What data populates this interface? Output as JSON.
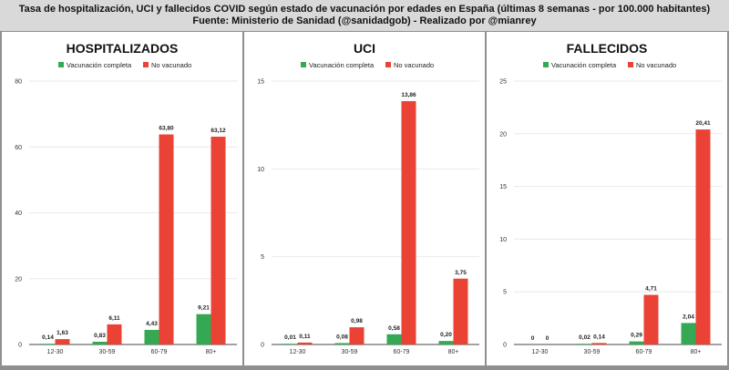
{
  "header": {
    "line1": "Tasa de hospitalización, UCI y fallecidos COVID según estado de vacunación por edades en España (últimas 8 semanas - por 100.000 habitantes)",
    "line2": "Fuente: Ministerio de Sanidad (@sanidadgob) - Realizado por @mianrey"
  },
  "colors": {
    "vaccinated": "#34a853",
    "unvaccinated": "#ea4335"
  },
  "chart_data": [
    {
      "type": "bar",
      "title": "HOSPITALIZADOS",
      "categories": [
        "12-30",
        "30-59",
        "60-79",
        "80+"
      ],
      "series": [
        {
          "name": "Vacunación completa",
          "values": [
            0.14,
            0.83,
            4.43,
            9.21
          ],
          "labels": [
            "0,14",
            "0,83",
            "4,43",
            "9,21"
          ]
        },
        {
          "name": "No vacunado",
          "values": [
            1.63,
            6.11,
            63.8,
            63.12
          ],
          "labels": [
            "1,63",
            "6,11",
            "63,80",
            "63,12"
          ]
        }
      ],
      "yticks": [
        0,
        20,
        40,
        60,
        80
      ],
      "ylim": [
        0,
        80
      ]
    },
    {
      "type": "bar",
      "title": "UCI",
      "categories": [
        "12-30",
        "30-59",
        "60-79",
        "80+"
      ],
      "series": [
        {
          "name": "Vacunación completa",
          "values": [
            0.01,
            0.08,
            0.58,
            0.2
          ],
          "labels": [
            "0,01",
            "0,08",
            "0,58",
            "0,20"
          ]
        },
        {
          "name": "No vacunado",
          "values": [
            0.11,
            0.98,
            13.86,
            3.75
          ],
          "labels": [
            "0,11",
            "0,98",
            "13,86",
            "3,75"
          ]
        }
      ],
      "yticks": [
        0,
        5,
        10,
        15
      ],
      "ylim": [
        0,
        15
      ]
    },
    {
      "type": "bar",
      "title": "FALLECIDOS",
      "categories": [
        "12-30",
        "30-59",
        "60-79",
        "80+"
      ],
      "series": [
        {
          "name": "Vacunación completa",
          "values": [
            0,
            0.02,
            0.29,
            2.04
          ],
          "labels": [
            "0",
            "0,02",
            "0,29",
            "2,04"
          ]
        },
        {
          "name": "No vacunado",
          "values": [
            0,
            0.14,
            4.71,
            20.41
          ],
          "labels": [
            "0",
            "0,14",
            "4,71",
            "20,41"
          ]
        }
      ],
      "yticks": [
        0,
        5,
        10,
        15,
        20,
        25
      ],
      "ylim": [
        0,
        25
      ]
    }
  ]
}
